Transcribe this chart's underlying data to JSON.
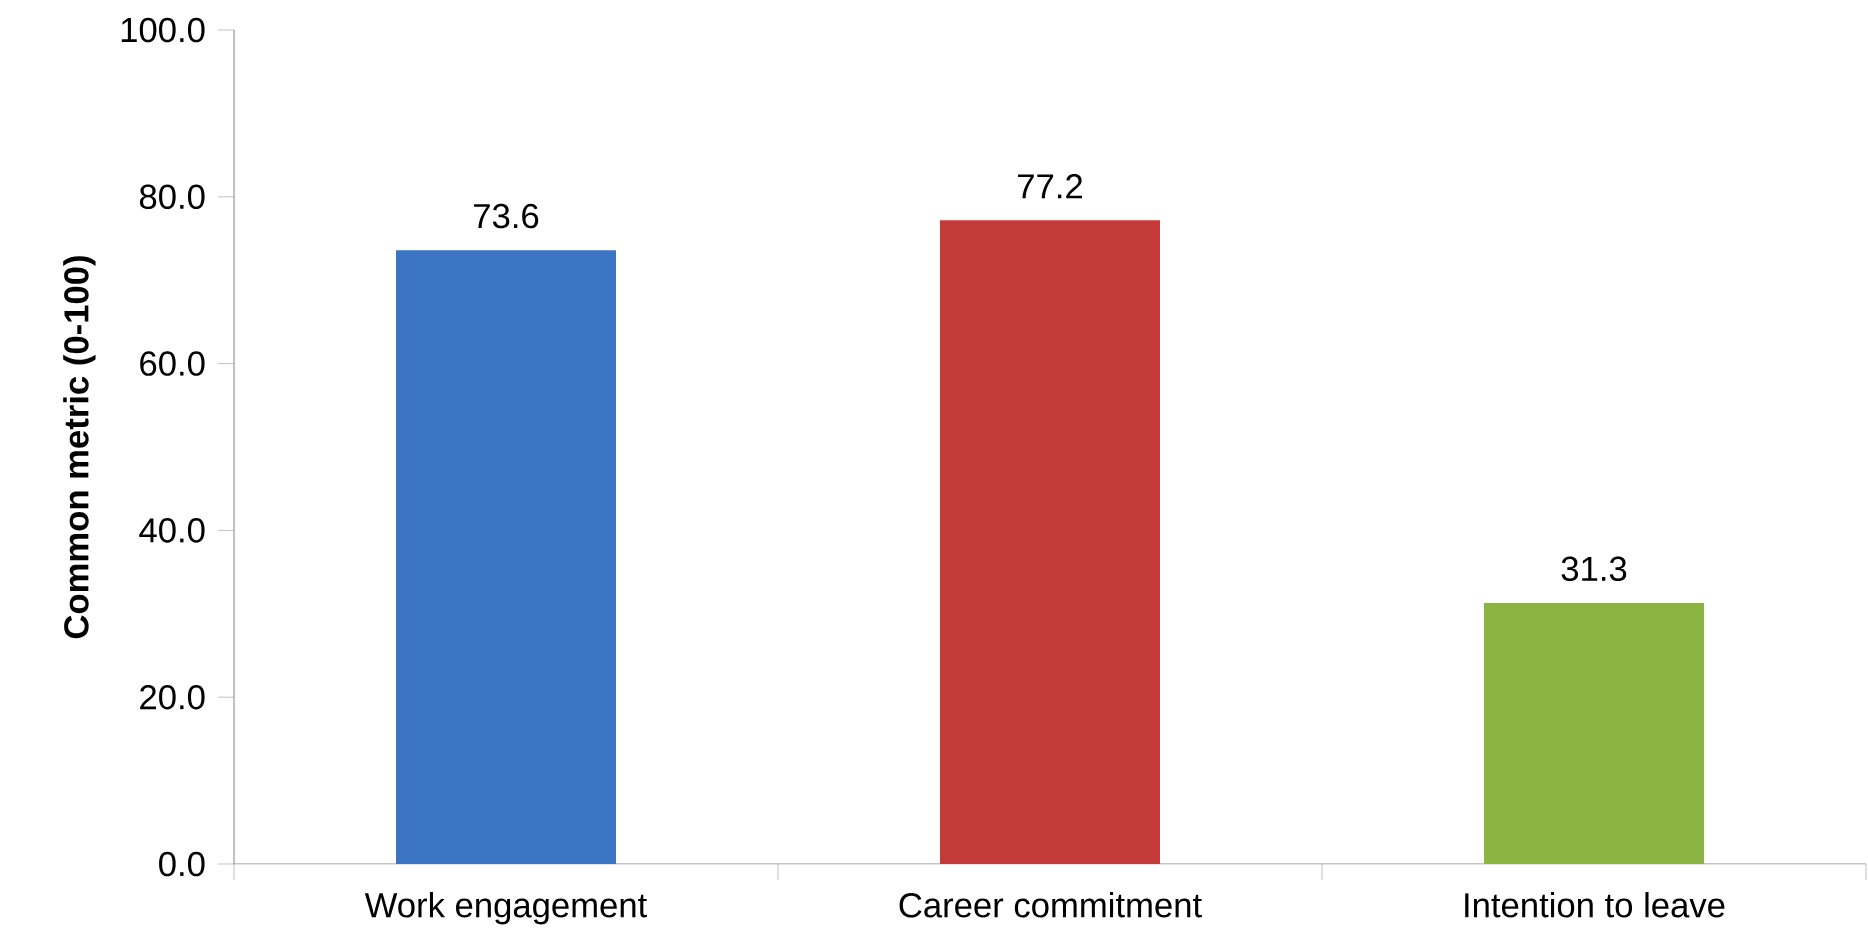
{
  "chart_data": {
    "type": "bar",
    "ylabel": "Common metric  (0-100)",
    "categories": [
      "Work engagement",
      "Career commitment",
      "Intention to leave"
    ],
    "values": [
      73.6,
      77.2,
      31.3
    ],
    "colors": [
      "#3a74c2",
      "#c43a38",
      "#8cb443"
    ],
    "ylim": [
      0,
      100
    ],
    "yticks": [
      {
        "value": 0,
        "label": "0.0"
      },
      {
        "value": 20,
        "label": "20.0"
      },
      {
        "value": 40,
        "label": "40.0"
      },
      {
        "value": 60,
        "label": "60.0"
      },
      {
        "value": 80,
        "label": "80.0"
      },
      {
        "value": 100,
        "label": "100.0"
      }
    ],
    "data_labels": true
  }
}
